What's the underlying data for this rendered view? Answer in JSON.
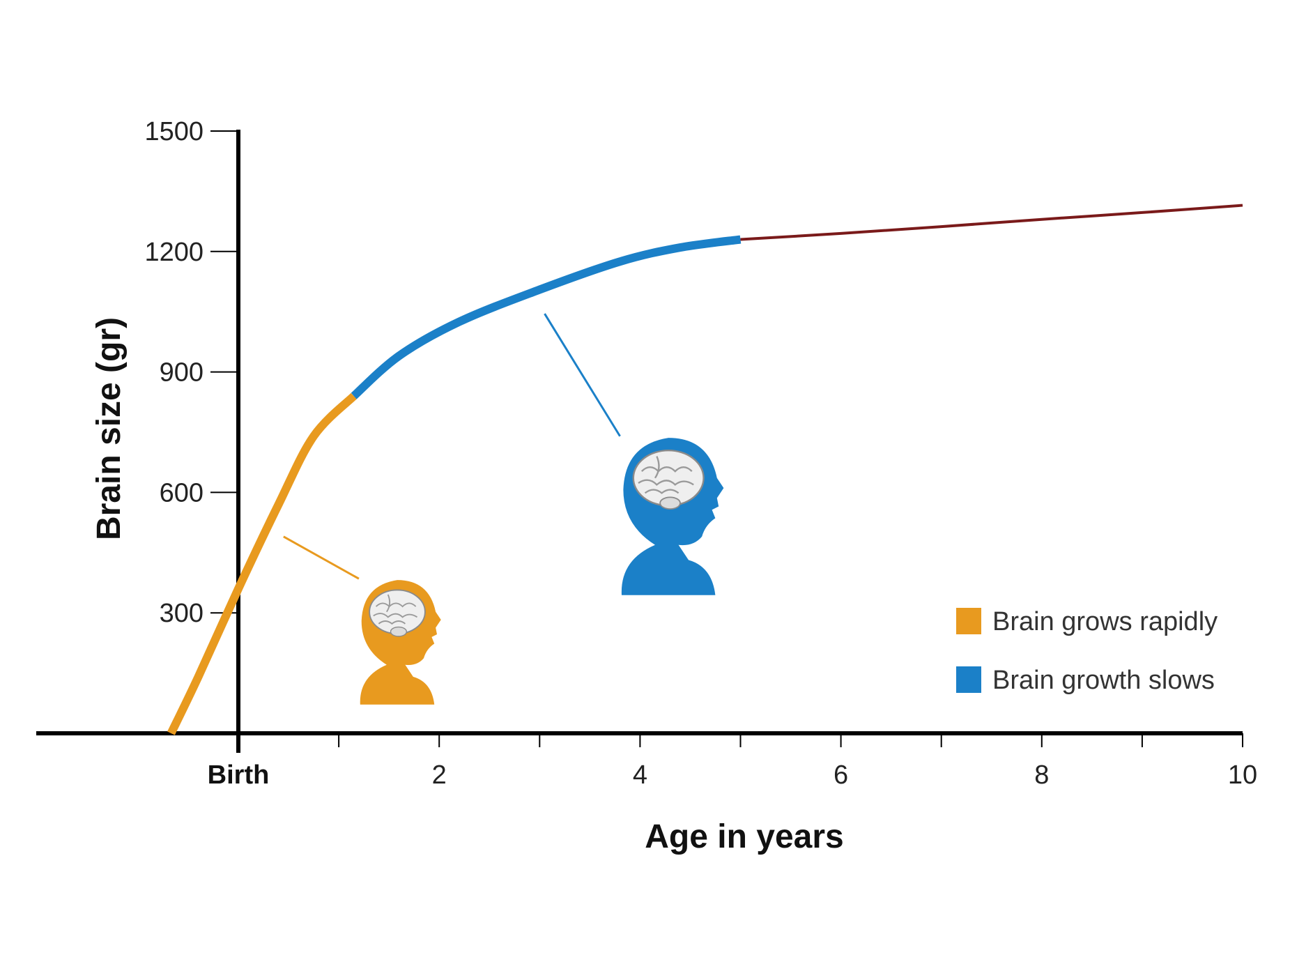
{
  "chart_data": {
    "type": "line",
    "xlabel": "Age in years",
    "ylabel": "Brain size (gr)",
    "xlim": [
      -1,
      10
    ],
    "ylim": [
      0,
      1500
    ],
    "x_tick_values": [
      0,
      2,
      4,
      6,
      8,
      10
    ],
    "x_tick_labels": [
      "Birth",
      "2",
      "4",
      "6",
      "8",
      "10"
    ],
    "y_ticks": [
      300,
      600,
      900,
      1200,
      1500
    ],
    "grid": false,
    "legend_position": "bottom-right",
    "legend": [
      {
        "label": "Brain grows rapidly",
        "color": "#e89a1f"
      },
      {
        "label": "Brain growth slows",
        "color": "#1b80c8"
      }
    ],
    "segments": [
      {
        "color": "#e89a1f",
        "points": [
          [
            -0.67,
            0
          ],
          [
            -0.4,
            140
          ],
          [
            0,
            360
          ],
          [
            0.4,
            570
          ],
          [
            0.75,
            740
          ],
          [
            1.15,
            840
          ]
        ]
      },
      {
        "color": "#1b80c8",
        "points": [
          [
            1.15,
            840
          ],
          [
            1.6,
            940
          ],
          [
            2.2,
            1025
          ],
          [
            3,
            1105
          ],
          [
            3.8,
            1175
          ],
          [
            4.4,
            1210
          ],
          [
            5,
            1230
          ]
        ]
      },
      {
        "color": "#7a1a1a",
        "points": [
          [
            5,
            1230
          ],
          [
            6,
            1245
          ],
          [
            7,
            1262
          ],
          [
            8,
            1280
          ],
          [
            9,
            1297
          ],
          [
            10,
            1315
          ]
        ]
      }
    ],
    "annotations": [
      {
        "name": "infant-head",
        "color": "#e89a1f",
        "leader_from": [
          0.45,
          490
        ],
        "leader_to": [
          1.2,
          385
        ]
      },
      {
        "name": "child-head",
        "color": "#1b80c8",
        "leader_from": [
          3.05,
          1045
        ],
        "leader_to": [
          3.8,
          740
        ]
      }
    ]
  }
}
